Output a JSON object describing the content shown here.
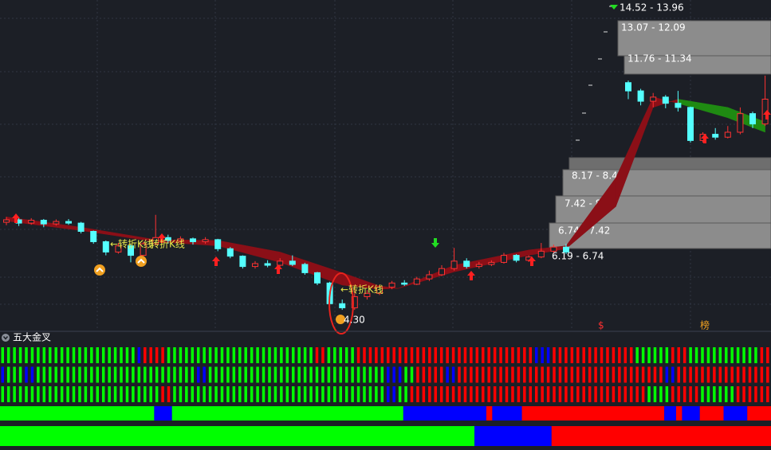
{
  "chart_data": {
    "type": "candlestick",
    "ylim": [
      3.8,
      11.8
    ],
    "up_color": "#ff3232",
    "down_color": "#54ffff",
    "candles": [
      [
        6.42,
        6.48,
        6.55,
        6.35
      ],
      [
        6.48,
        6.4,
        6.52,
        6.33
      ],
      [
        6.4,
        6.47,
        6.52,
        6.36
      ],
      [
        6.47,
        6.38,
        6.5,
        6.3
      ],
      [
        6.38,
        6.44,
        6.49,
        6.34
      ],
      [
        6.44,
        6.4,
        6.5,
        6.36
      ],
      [
        6.4,
        6.2,
        6.43,
        6.15
      ],
      [
        6.2,
        5.95,
        6.22,
        5.9
      ],
      [
        5.95,
        5.7,
        5.98,
        5.62
      ],
      [
        5.7,
        5.85,
        5.92,
        5.66
      ],
      [
        5.85,
        5.62,
        5.88,
        5.45
      ],
      [
        5.62,
        5.9,
        5.95,
        5.58
      ],
      [
        5.9,
        6.05,
        6.6,
        5.86
      ],
      [
        6.05,
        5.98,
        6.12,
        5.9
      ],
      [
        5.98,
        6.02,
        6.08,
        5.93
      ],
      [
        6.02,
        5.95,
        6.05,
        5.88
      ],
      [
        5.95,
        6.0,
        6.06,
        5.9
      ],
      [
        6.0,
        5.78,
        6.02,
        5.72
      ],
      [
        5.78,
        5.6,
        5.82,
        5.55
      ],
      [
        5.6,
        5.35,
        5.62,
        5.3
      ],
      [
        5.35,
        5.42,
        5.48,
        5.3
      ],
      [
        5.42,
        5.38,
        5.5,
        5.33
      ],
      [
        5.38,
        5.48,
        5.55,
        5.35
      ],
      [
        5.48,
        5.4,
        5.62,
        5.36
      ],
      [
        5.4,
        5.2,
        5.44,
        5.15
      ],
      [
        5.2,
        4.95,
        5.22,
        4.9
      ],
      [
        4.95,
        4.45,
        4.98,
        4.4
      ],
      [
        4.45,
        4.35,
        4.55,
        4.3
      ],
      [
        4.35,
        4.62,
        4.85,
        4.3
      ],
      [
        4.62,
        4.7,
        4.78,
        4.55
      ],
      [
        4.7,
        4.85,
        4.9,
        4.66
      ],
      [
        4.85,
        4.95,
        5.0,
        4.8
      ],
      [
        4.95,
        4.92,
        5.02,
        4.88
      ],
      [
        4.92,
        5.05,
        5.1,
        4.9
      ],
      [
        5.05,
        5.15,
        5.25,
        5.0
      ],
      [
        5.15,
        5.3,
        5.38,
        5.12
      ],
      [
        5.3,
        5.48,
        5.8,
        5.25
      ],
      [
        5.48,
        5.35,
        5.55,
        5.3
      ],
      [
        5.35,
        5.4,
        5.46,
        5.3
      ],
      [
        5.4,
        5.45,
        5.5,
        5.36
      ],
      [
        5.45,
        5.62,
        5.68,
        5.42
      ],
      [
        5.62,
        5.5,
        5.65,
        5.45
      ],
      [
        5.5,
        5.58,
        5.62,
        5.46
      ],
      [
        5.58,
        5.72,
        5.92,
        5.55
      ],
      [
        5.72,
        5.82,
        5.88,
        5.68
      ],
      [
        5.82,
        5.7,
        5.9,
        5.65
      ],
      null,
      null,
      null,
      null,
      [
        9.8,
        9.6,
        9.85,
        9.4
      ],
      [
        9.6,
        9.35,
        9.65,
        9.25
      ],
      [
        9.35,
        9.45,
        9.55,
        9.2
      ],
      [
        9.45,
        9.3,
        9.5,
        9.18
      ],
      [
        9.3,
        9.2,
        9.6,
        9.1
      ],
      [
        9.2,
        8.4,
        9.22,
        8.35
      ],
      [
        8.4,
        8.55,
        8.6,
        8.35
      ],
      [
        8.55,
        8.48,
        8.7,
        8.42
      ],
      [
        8.48,
        8.6,
        8.75,
        8.45
      ],
      [
        8.6,
        9.05,
        9.2,
        8.55
      ],
      [
        9.05,
        8.8,
        9.1,
        8.7
      ],
      [
        8.8,
        9.4,
        9.97,
        8.75
      ]
    ],
    "ribbon": {
      "x": [
        0,
        6,
        12,
        17,
        22,
        27,
        30,
        31.5,
        36,
        42,
        45,
        49,
        52,
        54,
        58,
        61
      ],
      "fast": [
        6.55,
        6.3,
        6.0,
        5.98,
        5.7,
        5.2,
        4.88,
        4.82,
        5.38,
        5.75,
        5.85,
        7.5,
        9.45,
        9.3,
        8.95,
        8.6
      ],
      "slow": [
        6.45,
        6.22,
        5.95,
        5.85,
        5.45,
        4.9,
        4.8,
        4.82,
        5.22,
        5.62,
        5.78,
        6.8,
        9.2,
        9.4,
        9.2,
        8.85
      ],
      "up_color": "#8b0f17",
      "down_color": "#1f8a12"
    },
    "low_label": "4.30",
    "annotations": [
      "←转折K线",
      "转折K线",
      "←转折K线"
    ],
    "chip_zones": [
      "14.52 - 13.96",
      "13.07 - 12.09",
      "11.76 - 11.34",
      "8.17 - 8.49",
      "7.42 - 8.17",
      "6.74 - 7.42",
      "6.19 - 6.74"
    ],
    "markers": [
      "$",
      "榜"
    ],
    "panel": {
      "title": "五大金叉",
      "bar_rows": [
        [
          {
            "color": "#00ff00",
            "count": 23
          },
          {
            "color": "#0000ff",
            "count": 1
          },
          {
            "color": "#ff0000",
            "count": 4
          },
          {
            "color": "#00ff00",
            "count": 25
          },
          {
            "color": "#ff0000",
            "count": 2
          },
          {
            "color": "#00ff00",
            "count": 5
          },
          {
            "color": "#ff0000",
            "count": 30
          },
          {
            "color": "#0000ff",
            "count": 3
          },
          {
            "color": "#ff0000",
            "count": 14
          },
          {
            "color": "#00ff00",
            "count": 6
          },
          {
            "color": "#ff0000",
            "count": 3
          },
          {
            "color": "#00ff00",
            "count": 12
          },
          {
            "color": "#ff0000",
            "count": 2
          }
        ],
        [
          {
            "color": "#0000ff",
            "count": 1
          },
          {
            "color": "#00ff00",
            "count": 3
          },
          {
            "color": "#0000ff",
            "count": 2
          },
          {
            "color": "#00ff00",
            "count": 27
          },
          {
            "color": "#0000ff",
            "count": 2
          },
          {
            "color": "#00ff00",
            "count": 30
          },
          {
            "color": "#0000ff",
            "count": 3
          },
          {
            "color": "#00ff00",
            "count": 2
          },
          {
            "color": "#ff0000",
            "count": 5
          },
          {
            "color": "#0000ff",
            "count": 2
          },
          {
            "color": "#ff0000",
            "count": 35
          },
          {
            "color": "#0000ff",
            "count": 2
          },
          {
            "color": "#ff0000",
            "count": 16
          }
        ],
        [
          {
            "color": "#00ff00",
            "count": 27
          },
          {
            "color": "#ff0000",
            "count": 2
          },
          {
            "color": "#00ff00",
            "count": 36
          },
          {
            "color": "#0000ff",
            "count": 2
          },
          {
            "color": "#00ff00",
            "count": 2
          },
          {
            "color": "#ff0000",
            "count": 40
          },
          {
            "color": "#00ff00",
            "count": 4
          },
          {
            "color": "#ff0000",
            "count": 5
          },
          {
            "color": "#00ff00",
            "count": 6
          },
          {
            "color": "#ff0000",
            "count": 6
          }
        ]
      ],
      "band_rows": [
        [
          {
            "color": "#00ff00",
            "count": 26
          },
          {
            "color": "#0000ff",
            "count": 3
          },
          {
            "color": "#00ff00",
            "count": 39
          },
          {
            "color": "#0000ff",
            "count": 14
          },
          {
            "color": "#ff0000",
            "count": 1
          },
          {
            "color": "#0000ff",
            "count": 5
          },
          {
            "color": "#ff0000",
            "count": 24
          },
          {
            "color": "#0000ff",
            "count": 2
          },
          {
            "color": "#ff0000",
            "count": 1
          },
          {
            "color": "#0000ff",
            "count": 3
          },
          {
            "color": "#ff0000",
            "count": 4
          },
          {
            "color": "#0000ff",
            "count": 4
          },
          {
            "color": "#ff0000",
            "count": 4
          }
        ],
        [
          {
            "color": "#00ff00",
            "count": 80
          },
          {
            "color": "#0000ff",
            "count": 13
          },
          {
            "color": "#ff0000",
            "count": 37
          }
        ]
      ]
    }
  }
}
